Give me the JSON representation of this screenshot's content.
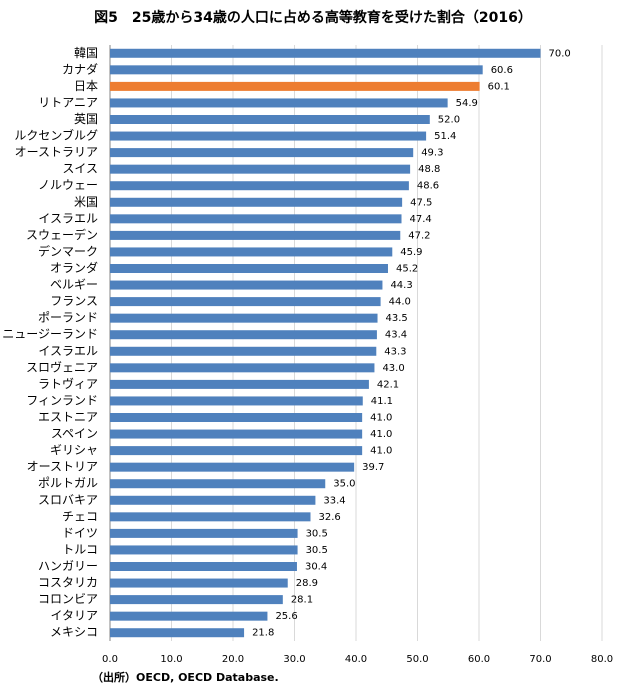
{
  "chart_data": {
    "type": "barh",
    "title": "図5　25歳から34歳の人口に占める高等教育を受けた割合（2016）",
    "source": "（出所）OECD, OECD Database.",
    "categories": [
      "韓国",
      "カナダ",
      "日本",
      "リトアニア",
      "英国",
      "ルクセンブルグ",
      "オーストラリア",
      "スイス",
      "ノルウェー",
      "米国",
      "イスラエル",
      "スウェーデン",
      "デンマーク",
      "オランダ",
      "ベルギー",
      "フランス",
      "ポーランド",
      "ニュージーランド",
      "イスラエル",
      "スロヴェニア",
      "ラトヴィア",
      "フィンランド",
      "エストニア",
      "スペイン",
      "ギリシャ",
      "オーストリア",
      "ポルトガル",
      "スロバキア",
      "チェコ",
      "ドイツ",
      "トルコ",
      "ハンガリー",
      "コスタリカ",
      "コロンビア",
      "イタリア",
      "メキシコ"
    ],
    "values": [
      70,
      60.6,
      60.1,
      54.9,
      52,
      51.4,
      49.3,
      48.8,
      48.6,
      47.5,
      47.4,
      47.2,
      45.9,
      45.2,
      44.3,
      44,
      43.5,
      43.4,
      43.3,
      43,
      42.1,
      41.1,
      41,
      41,
      41,
      39.7,
      35,
      33.4,
      32.6,
      30.5,
      30.5,
      30.4,
      28.9,
      28.1,
      25.6,
      21.8
    ],
    "value_labels": [
      "70.0",
      "60.6",
      "60.1",
      "54.9",
      "52.0",
      "51.4",
      "49.3",
      "48.8",
      "48.6",
      "47.5",
      "47.4",
      "47.2",
      "45.9",
      "45.2",
      "44.3",
      "44.0",
      "43.5",
      "43.4",
      "43.3",
      "43.0",
      "42.1",
      "41.1",
      "41.0",
      "41.0",
      "41.0",
      "39.7",
      "35.0",
      "33.4",
      "32.6",
      "30.5",
      "30.5",
      "30.4",
      "28.9",
      "28.1",
      "25.6",
      "21.8"
    ],
    "colors": [
      "#4f81bd",
      "#4f81bd",
      "#ed7d31",
      "#4f81bd",
      "#4f81bd",
      "#4f81bd",
      "#4f81bd",
      "#4f81bd",
      "#4f81bd",
      "#4f81bd",
      "#4f81bd",
      "#4f81bd",
      "#4f81bd",
      "#4f81bd",
      "#4f81bd",
      "#4f81bd",
      "#4f81bd",
      "#4f81bd",
      "#4f81bd",
      "#4f81bd",
      "#4f81bd",
      "#4f81bd",
      "#4f81bd",
      "#4f81bd",
      "#4f81bd",
      "#4f81bd",
      "#4f81bd",
      "#4f81bd",
      "#4f81bd",
      "#4f81bd",
      "#4f81bd",
      "#4f81bd",
      "#4f81bd",
      "#4f81bd",
      "#4f81bd",
      "#4f81bd"
    ],
    "xlim": [
      0,
      80
    ],
    "xticks": [
      {
        "value": 0,
        "label": "0.0"
      },
      {
        "value": 10,
        "label": "10.0"
      },
      {
        "value": 20,
        "label": "20.0"
      },
      {
        "value": 30,
        "label": "30.0"
      },
      {
        "value": 40,
        "label": "40.0"
      },
      {
        "value": 50,
        "label": "50.0"
      },
      {
        "value": 60,
        "label": "60.0"
      },
      {
        "value": 70,
        "label": "70.0"
      },
      {
        "value": 80,
        "label": "80.0"
      }
    ],
    "grid": true
  }
}
